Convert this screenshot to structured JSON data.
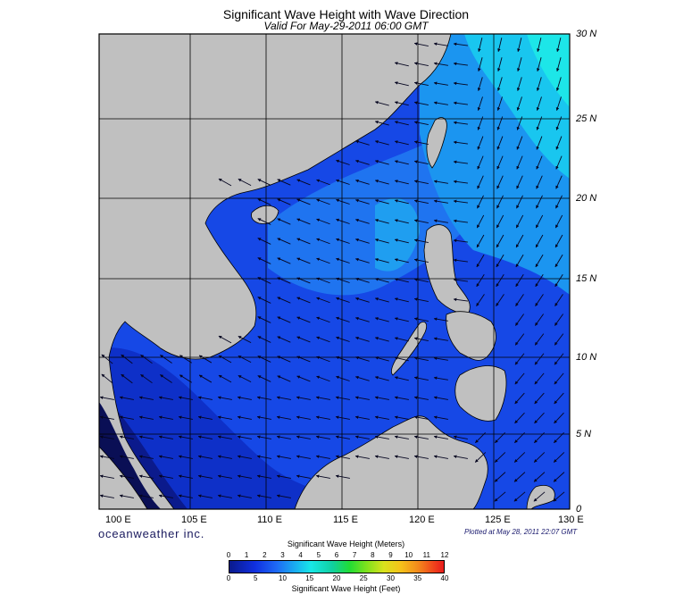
{
  "title": "Significant Wave Height with Wave Direction",
  "subtitle": "Valid For May-29-2011 06:00 GMT",
  "lat_labels": [
    "30 N",
    "25 N",
    "20 N",
    "15 N",
    "10 N",
    "5 N",
    "0"
  ],
  "lon_labels": [
    "100 E",
    "105 E",
    "110 E",
    "115 E",
    "120 E",
    "125 E",
    "130 E"
  ],
  "brand": "oceanweather inc.",
  "plotted_note": "Plotted at May 28, 2011 22:07 GMT",
  "colorbar": {
    "title_meters": "Significant Wave Height (Meters)",
    "title_feet": "Significant Wave Height (Feet)",
    "meters_ticks": [
      "0",
      "1",
      "2",
      "3",
      "4",
      "5",
      "6",
      "7",
      "8",
      "9",
      "10",
      "11",
      "12"
    ],
    "feet_ticks": [
      "0",
      "5",
      "10",
      "15",
      "20",
      "25",
      "30",
      "35",
      "40"
    ],
    "colors": [
      "#0a1a8c",
      "#1030e0",
      "#1e6af5",
      "#19b8ef",
      "#18e7e7",
      "#10d0a0",
      "#20dc35",
      "#7fe21d",
      "#d9e21d",
      "#f5c21a",
      "#f38a1c",
      "#ef3d1c",
      "#e81c1c"
    ]
  },
  "map": {
    "extent": {
      "lon": [
        99,
        130
      ],
      "lat": [
        0,
        30
      ]
    },
    "land_color": "#c0c0c0",
    "wave_colors": {
      "low": "#0b1fa0",
      "mid": "#1a5ef0",
      "high": "#1fa0f0",
      "highest": "#1de3ea"
    },
    "dominant_direction": "west-southwest"
  }
}
